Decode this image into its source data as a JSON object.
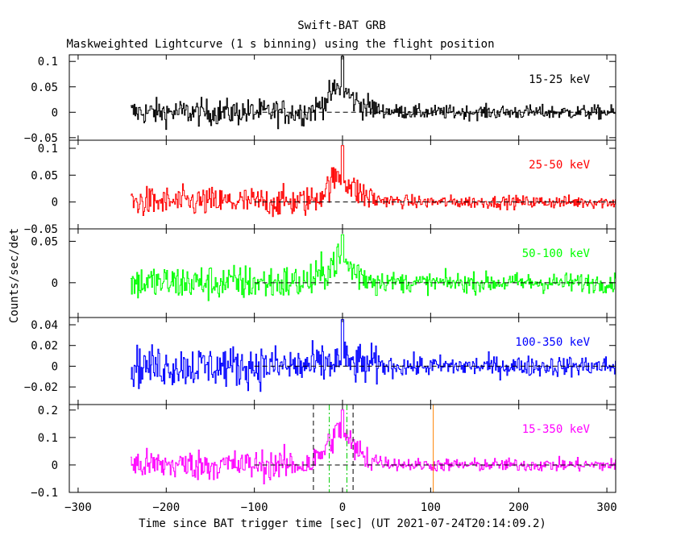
{
  "header": {
    "title": "Swift-BAT GRB",
    "subtitle": "Maskweighted Lightcurve (1 s binning) using the flight position"
  },
  "axes": {
    "ylabel": "Counts/sec/det",
    "xlabel": "Time since BAT trigger time [sec] (UT 2021-07-24T20:14:09.2)"
  },
  "chart_data": [
    {
      "type": "line",
      "band_label": "15-25 keV",
      "color": "#000000",
      "xlim": [
        -310,
        310
      ],
      "ylim": [
        -0.055,
        0.113
      ],
      "yticks": [
        -0.05,
        0,
        0.05,
        0.1
      ],
      "yticklabels": [
        "−0.05",
        "0",
        "0.05",
        "0.1"
      ],
      "x_range": [
        -240,
        310
      ],
      "pre_noise": 0.013,
      "post_noise": 0.007,
      "peak_time": 0,
      "peak_value": 0.05,
      "peak_max": 0.11,
      "zero_line": true
    },
    {
      "type": "line",
      "band_label": "25-50 keV",
      "color": "#ff0000",
      "xlim": [
        -310,
        310
      ],
      "ylim": [
        -0.05,
        0.115
      ],
      "yticks": [
        -0.05,
        0,
        0.05,
        0.1
      ],
      "yticklabels": [
        "−0.05",
        "0",
        "0.05",
        "0.1"
      ],
      "x_range": [
        -240,
        310
      ],
      "pre_noise": 0.014,
      "post_noise": 0.006,
      "peak_time": 0,
      "peak_value": 0.05,
      "peak_max": 0.105,
      "zero_line": true
    },
    {
      "type": "line",
      "band_label": "50-100 keV",
      "color": "#00ff00",
      "xlim": [
        -310,
        310
      ],
      "ylim": [
        -0.042,
        0.065
      ],
      "yticks": [
        0,
        0.05
      ],
      "yticklabels": [
        "0",
        "0.05"
      ],
      "x_range": [
        -240,
        310
      ],
      "pre_noise": 0.011,
      "post_noise": 0.006,
      "peak_time": 0,
      "peak_value": 0.03,
      "peak_max": 0.058,
      "zero_line": true
    },
    {
      "type": "line",
      "band_label": "100-350 keV",
      "color": "#0000ff",
      "xlim": [
        -310,
        310
      ],
      "ylim": [
        -0.037,
        0.047
      ],
      "yticks": [
        -0.02,
        0,
        0.02,
        0.04
      ],
      "yticklabels": [
        "−0.02",
        "0",
        "0.02",
        "0.04"
      ],
      "x_range": [
        -240,
        310
      ],
      "pre_noise": 0.01,
      "post_noise": 0.005,
      "peak_time": 0,
      "peak_value": 0.005,
      "peak_max": 0.045,
      "zero_line": true
    },
    {
      "type": "line",
      "band_label": "15-350 keV",
      "color": "#ff00ff",
      "xlim": [
        -310,
        310
      ],
      "ylim": [
        -0.1,
        0.22
      ],
      "yticks": [
        -0.1,
        0,
        0.1,
        0.2
      ],
      "yticklabels": [
        "−0.1",
        "0",
        "0.1",
        "0.2"
      ],
      "x_range": [
        -240,
        310
      ],
      "pre_noise": 0.028,
      "post_noise": 0.012,
      "peak_time": 0,
      "peak_value": 0.13,
      "peak_max": 0.2,
      "zero_line": true,
      "markers": [
        {
          "x": -33,
          "color": "#000000",
          "style": "dashed"
        },
        {
          "x": 12,
          "color": "#000000",
          "style": "dashed"
        },
        {
          "x": -15,
          "color": "#00cc00",
          "style": "dashdot"
        },
        {
          "x": 5,
          "color": "#00cc00",
          "style": "dashdot"
        },
        {
          "x": 103,
          "color": "#ff8000",
          "style": "solid"
        }
      ]
    }
  ],
  "xaxis": {
    "ticks": [
      -300,
      -200,
      -100,
      0,
      100,
      200,
      300
    ],
    "ticklabels": [
      "−300",
      "−200",
      "−100",
      "0",
      "100",
      "200",
      "300"
    ]
  }
}
